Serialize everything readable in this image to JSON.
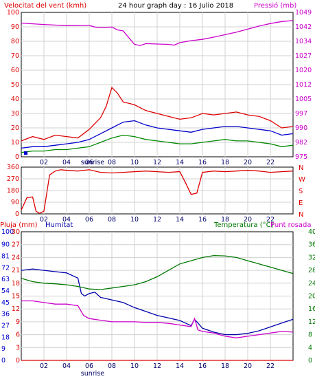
{
  "chart_data": [
    {
      "type": "line",
      "title": "24 hour graph day : 16 Julio 2018",
      "ylabel_left": "Velocitat del vent (kmh)",
      "ylabel_right": "Pressió (mb)",
      "x_ticks": [
        "02",
        "04",
        "06",
        "08",
        "10",
        "12",
        "14",
        "16",
        "18",
        "20",
        "22"
      ],
      "annotations": [
        "sunrise"
      ],
      "left_axis": {
        "range": [
          0,
          100
        ],
        "ticks": [
          "0",
          "10",
          "20",
          "30",
          "40",
          "50",
          "60",
          "70",
          "80",
          "90",
          "100"
        ]
      },
      "right_axis": {
        "range": [
          975,
          1049
        ],
        "ticks": [
          "975",
          "982",
          "990",
          "997",
          "1005",
          "1012",
          "1020",
          "1027",
          "1034",
          "1042",
          "1049"
        ]
      },
      "grid": true,
      "series": [
        {
          "name": "Pressió (mb)",
          "axis": "right",
          "color": "#cc00cc",
          "x": [
            0,
            2,
            4,
            6,
            6.5,
            7,
            8,
            8.5,
            9,
            9.5,
            10,
            10.5,
            11,
            12,
            13,
            13.5,
            14,
            15,
            16,
            17,
            18,
            19,
            20,
            21,
            22,
            23,
            24
          ],
          "y": [
            1043.5,
            1042.8,
            1042.2,
            1042.3,
            1041.5,
            1041.2,
            1041.5,
            1040,
            1039.5,
            1036,
            1032.6,
            1032,
            1033,
            1032.8,
            1032.6,
            1032.2,
            1033.5,
            1034.5,
            1035.2,
            1036.3,
            1037.6,
            1038.9,
            1040.4,
            1042,
            1043.3,
            1044.3,
            1044.8
          ]
        },
        {
          "name": "Gust (red)",
          "axis": "left",
          "color": "#dd0000",
          "x": [
            0,
            1,
            2,
            3,
            4,
            5,
            6,
            7,
            7.5,
            8,
            8.5,
            9,
            9.5,
            10,
            11,
            12,
            13,
            14,
            15,
            16,
            17,
            18,
            19,
            20,
            21,
            22,
            23,
            24
          ],
          "y": [
            11,
            14,
            12,
            15,
            14,
            13,
            19,
            27,
            35,
            48,
            44,
            38,
            37,
            36,
            32,
            30,
            28,
            26,
            27,
            30,
            29,
            30,
            31,
            29,
            28,
            25,
            20,
            21
          ]
        },
        {
          "name": "Average (blue)",
          "axis": "left",
          "color": "#0000cc",
          "x": [
            0,
            1,
            2,
            3,
            4,
            5,
            6,
            7,
            8,
            9,
            10,
            11,
            12,
            13,
            14,
            15,
            16,
            17,
            18,
            19,
            20,
            21,
            22,
            23,
            24
          ],
          "y": [
            6,
            7,
            7,
            8,
            9,
            10,
            12,
            16,
            20,
            24,
            25,
            22,
            20,
            19,
            18,
            17,
            19,
            20,
            21,
            21,
            20,
            19,
            18,
            15,
            16
          ]
        },
        {
          "name": "Minimum (green)",
          "axis": "left",
          "color": "#008800",
          "x": [
            0,
            1,
            2,
            3,
            4,
            5,
            6,
            7,
            8,
            9,
            10,
            11,
            12,
            13,
            14,
            15,
            16,
            17,
            18,
            19,
            20,
            21,
            22,
            23,
            24
          ],
          "y": [
            3,
            4,
            4,
            5,
            5,
            6,
            7,
            10,
            13,
            15,
            14,
            12,
            11,
            10,
            9,
            9,
            10,
            11,
            12,
            11,
            11,
            10,
            9,
            7,
            8
          ]
        }
      ]
    },
    {
      "type": "line",
      "title": "",
      "left_axis": {
        "range": [
          0,
          360
        ],
        "ticks": [
          "0",
          "90",
          "180",
          "270",
          "360"
        ]
      },
      "right_axis_labels": [
        "N",
        "E",
        "S",
        "W",
        "N"
      ],
      "x_ticks": [
        "02",
        "04",
        "06",
        "08",
        "10",
        "12",
        "14",
        "16",
        "18",
        "20",
        "22"
      ],
      "grid": true,
      "series": [
        {
          "name": "Wind direction",
          "color": "#dd0000",
          "x": [
            0,
            0.5,
            1,
            1.3,
            1.6,
            2,
            2.5,
            3,
            3.5,
            4,
            5,
            6,
            7,
            8,
            9,
            10,
            11,
            12,
            13,
            14,
            14.5,
            15,
            15.5,
            16,
            17,
            18,
            19,
            20,
            21,
            22,
            23,
            24
          ],
          "y": [
            30,
            125,
            130,
            20,
            5,
            20,
            300,
            330,
            340,
            335,
            330,
            340,
            320,
            315,
            320,
            325,
            330,
            325,
            320,
            325,
            240,
            150,
            160,
            320,
            330,
            325,
            330,
            335,
            330,
            320,
            325,
            330
          ]
        }
      ]
    },
    {
      "type": "line",
      "title": "",
      "labels_left": [
        "Pluja (mm)",
        "Humitat"
      ],
      "labels_right": [
        "Temperatura (°C)",
        "Punt rosada"
      ],
      "x_ticks": [
        "02",
        "04",
        "06",
        "08",
        "10",
        "12",
        "14",
        "16",
        "18",
        "20",
        "22"
      ],
      "annotations": [
        "sunrise"
      ],
      "axes": {
        "humitat": {
          "range": [
            0,
            100
          ],
          "ticks": [
            "0",
            "9",
            "18",
            "27",
            "36",
            "45",
            "54",
            "63",
            "72",
            "81",
            "90",
            "100"
          ]
        },
        "pluja": {
          "range": [
            0,
            30
          ],
          "ticks": [
            "0",
            "3",
            "6",
            "9",
            "12",
            "15",
            "18",
            "21",
            "24",
            "27",
            "30"
          ]
        },
        "temperatura": {
          "range": [
            0,
            40
          ],
          "ticks": [
            "0",
            "4",
            "8",
            "12",
            "16",
            "20",
            "24",
            "28",
            "32",
            "36",
            "40"
          ]
        }
      },
      "grid": true,
      "series": [
        {
          "name": "Humitat",
          "axis": "humitat",
          "color": "#0000aa",
          "x": [
            0,
            1,
            2,
            3,
            4,
            4.5,
            5,
            5.3,
            5.6,
            6,
            6.5,
            7,
            8,
            9,
            10,
            11,
            12,
            13,
            14,
            14.5,
            15,
            15.3,
            15.6,
            16,
            17,
            18,
            19,
            20,
            21,
            22,
            23,
            24
          ],
          "y": [
            70,
            71,
            70,
            69,
            68,
            66,
            64,
            52,
            50,
            52,
            53,
            49,
            47,
            45,
            41,
            38,
            35,
            33,
            31,
            29,
            27,
            32,
            29,
            25,
            22,
            20,
            20,
            21,
            23,
            26,
            29,
            32
          ]
        },
        {
          "name": "Temperatura (°C)",
          "axis": "temperatura",
          "color": "#007700",
          "x": [
            0,
            1,
            2,
            3,
            4,
            5,
            6,
            7,
            8,
            9,
            10,
            11,
            12,
            13,
            14,
            15,
            16,
            17,
            18,
            19,
            20,
            21,
            22,
            23,
            24
          ],
          "y": [
            25.5,
            24.5,
            24,
            23.8,
            23.5,
            23,
            22.2,
            22,
            22.5,
            23,
            23.5,
            24.5,
            26,
            28,
            30,
            31,
            32,
            32.6,
            32.5,
            32,
            31,
            30,
            29,
            28,
            27
          ]
        },
        {
          "name": "Punt rosada",
          "axis": "temperatura",
          "color": "#cc00cc",
          "x": [
            0,
            1,
            2,
            3,
            4,
            5,
            5.5,
            6,
            7,
            8,
            9,
            10,
            11,
            12,
            13,
            14,
            15,
            15.3,
            15.6,
            16,
            17,
            18,
            19,
            20,
            21,
            22,
            23,
            24
          ],
          "y": [
            18.5,
            18.5,
            18,
            17.5,
            17.5,
            17,
            14,
            13,
            12.5,
            12,
            12,
            12,
            11.8,
            11.8,
            11.5,
            11,
            10.5,
            13,
            9.5,
            9,
            8.5,
            7.5,
            7,
            7.5,
            8,
            8.5,
            9,
            8.8
          ]
        },
        {
          "name": "Pluja (mm)",
          "axis": "pluja",
          "color": "#dd0000",
          "x": [
            0,
            24
          ],
          "y": [
            0,
            0
          ]
        }
      ]
    }
  ]
}
